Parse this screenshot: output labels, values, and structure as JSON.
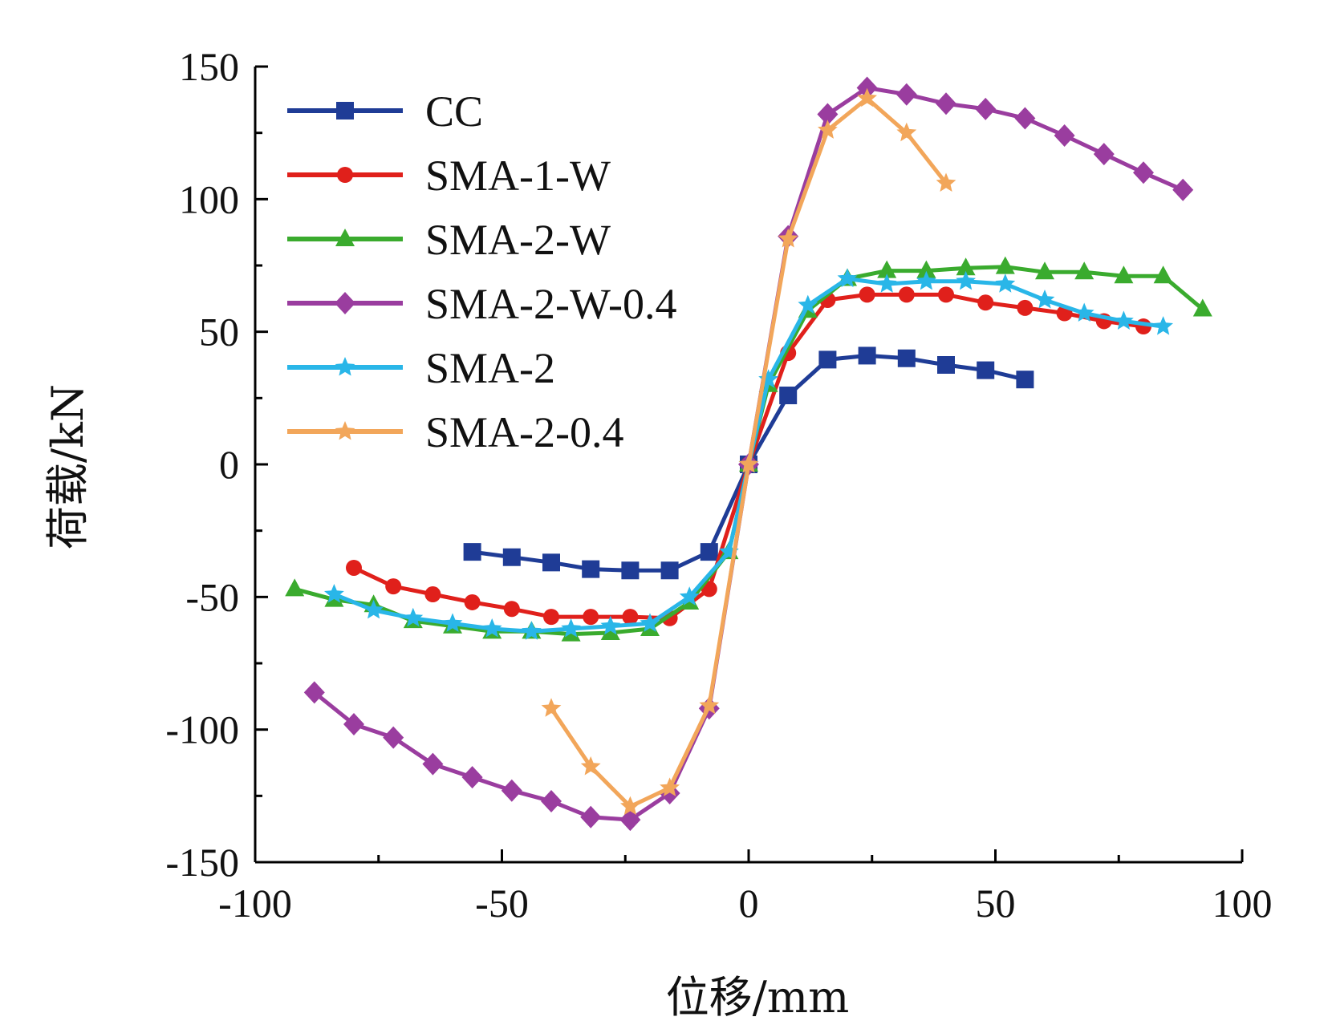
{
  "chart_data": {
    "type": "line",
    "title": "",
    "xlabel": "位移/mm",
    "ylabel": "荷载/kN",
    "xlim": [
      -100,
      100
    ],
    "ylim": [
      -150,
      150
    ],
    "xticks": [
      -100,
      -50,
      0,
      50,
      100
    ],
    "yticks": [
      150,
      100,
      50,
      0,
      -50,
      -100,
      -150
    ],
    "legend_position": "top-left",
    "grid": false,
    "series": [
      {
        "name": "CC",
        "color": "#1f3c96",
        "marker": "square",
        "points": [
          [
            -56,
            -33
          ],
          [
            -48,
            -35
          ],
          [
            -40,
            -37
          ],
          [
            -32,
            -39.5
          ],
          [
            -24,
            -40
          ],
          [
            -16,
            -40
          ],
          [
            -8,
            -33
          ],
          [
            0,
            0
          ],
          [
            8,
            26
          ],
          [
            16,
            39.5
          ],
          [
            24,
            41
          ],
          [
            32,
            40
          ],
          [
            40,
            37.5
          ],
          [
            48,
            35.5
          ],
          [
            56,
            32
          ]
        ]
      },
      {
        "name": "SMA-1-W",
        "color": "#e0201b",
        "marker": "circle",
        "points": [
          [
            -80,
            -39
          ],
          [
            -72,
            -46
          ],
          [
            -64,
            -49
          ],
          [
            -56,
            -52
          ],
          [
            -48,
            -54.5
          ],
          [
            -40,
            -57.5
          ],
          [
            -32,
            -57.5
          ],
          [
            -24,
            -57.5
          ],
          [
            -16,
            -58
          ],
          [
            -8,
            -47
          ],
          [
            0,
            0
          ],
          [
            8,
            42
          ],
          [
            16,
            62
          ],
          [
            24,
            64
          ],
          [
            32,
            64
          ],
          [
            40,
            64
          ],
          [
            48,
            61
          ],
          [
            56,
            59
          ],
          [
            64,
            57
          ],
          [
            72,
            54
          ],
          [
            80,
            52
          ]
        ]
      },
      {
        "name": "SMA-2-W",
        "color": "#3aab2e",
        "marker": "triangle",
        "points": [
          [
            -92,
            -47
          ],
          [
            -84,
            -51
          ],
          [
            -76,
            -53
          ],
          [
            -68,
            -59
          ],
          [
            -60,
            -61
          ],
          [
            -52,
            -63
          ],
          [
            -44,
            -63
          ],
          [
            -36,
            -64
          ],
          [
            -28,
            -63.5
          ],
          [
            -20,
            -62
          ],
          [
            -12,
            -52
          ],
          [
            -4,
            -33
          ],
          [
            0,
            0
          ],
          [
            4,
            30
          ],
          [
            12,
            58
          ],
          [
            20,
            70
          ],
          [
            28,
            73
          ],
          [
            36,
            73
          ],
          [
            44,
            74
          ],
          [
            52,
            74.5
          ],
          [
            60,
            72.5
          ],
          [
            68,
            72.5
          ],
          [
            76,
            71
          ],
          [
            84,
            71
          ],
          [
            92,
            58.5
          ]
        ]
      },
      {
        "name": "SMA-2-W-0.4",
        "color": "#9a3d9f",
        "marker": "diamond",
        "points": [
          [
            -88,
            -86
          ],
          [
            -80,
            -98
          ],
          [
            -72,
            -103
          ],
          [
            -64,
            -113
          ],
          [
            -56,
            -118
          ],
          [
            -48,
            -123
          ],
          [
            -40,
            -127
          ],
          [
            -32,
            -133
          ],
          [
            -24,
            -134
          ],
          [
            -16,
            -124
          ],
          [
            -8,
            -92
          ],
          [
            0,
            0
          ],
          [
            8,
            86
          ],
          [
            16,
            132
          ],
          [
            24,
            142
          ],
          [
            32,
            139.5
          ],
          [
            40,
            136
          ],
          [
            48,
            134
          ],
          [
            56,
            130.5
          ],
          [
            64,
            124
          ],
          [
            72,
            117
          ],
          [
            80,
            110
          ],
          [
            88,
            103.5
          ]
        ]
      },
      {
        "name": "SMA-2",
        "color": "#29b6e8",
        "marker": "star",
        "points": [
          [
            -84,
            -49
          ],
          [
            -76,
            -55
          ],
          [
            -68,
            -58
          ],
          [
            -60,
            -60
          ],
          [
            -52,
            -62
          ],
          [
            -44,
            -63
          ],
          [
            -36,
            -62
          ],
          [
            -28,
            -61
          ],
          [
            -20,
            -60
          ],
          [
            -12,
            -50
          ],
          [
            -4,
            -33
          ],
          [
            0,
            0
          ],
          [
            4,
            32
          ],
          [
            12,
            60
          ],
          [
            20,
            70
          ],
          [
            28,
            68
          ],
          [
            36,
            69
          ],
          [
            44,
            69
          ],
          [
            52,
            68
          ],
          [
            60,
            62
          ],
          [
            68,
            57
          ],
          [
            76,
            54
          ],
          [
            84,
            52
          ]
        ]
      },
      {
        "name": "SMA-2-0.4",
        "color": "#f2a65a",
        "marker": "star",
        "points": [
          [
            -40,
            -92
          ],
          [
            -32,
            -114
          ],
          [
            -24,
            -129
          ],
          [
            -16,
            -122
          ],
          [
            -8,
            -91
          ],
          [
            0,
            0
          ],
          [
            8,
            85
          ],
          [
            16,
            126
          ],
          [
            24,
            138
          ],
          [
            32,
            125
          ],
          [
            40,
            106
          ]
        ]
      }
    ]
  }
}
